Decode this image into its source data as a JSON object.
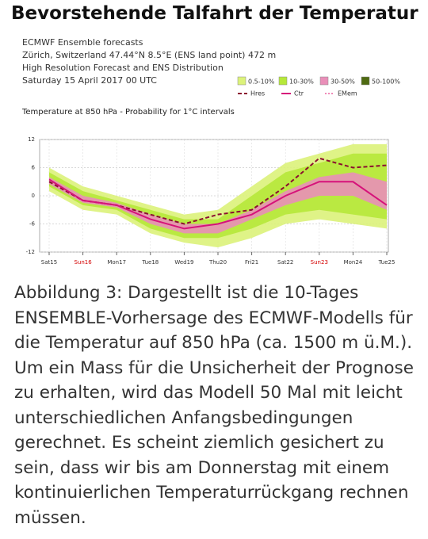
{
  "title": "Bevorstehende Talfahrt der Temperatur",
  "chart_data": {
    "type": "line",
    "header": [
      "ECMWF Ensemble forecasts",
      "Zürich, Switzerland 47.44°N 8.5°E (ENS land point) 472 m",
      "High Resolution Forecast and ENS Distribution",
      "Saturday 15 April 2017 00 UTC"
    ],
    "subtitle": "Temperature at 850 hPa - Probability for 1°C intervals",
    "categories": [
      "Sat15",
      "Sun16",
      "Mon17",
      "Tue18",
      "Wed19",
      "Thu20",
      "Fri21",
      "Sat22",
      "Sun23",
      "Mon24",
      "Tue25"
    ],
    "highlight": [
      1,
      8
    ],
    "highlight_color": "#d40000",
    "ylim": [
      -12,
      12
    ],
    "yticks": [
      -12,
      -6,
      0,
      6,
      12
    ],
    "grid": true,
    "bands": [
      {
        "name": "0.5-10%",
        "color": "#dcf27a",
        "lower": [
          1,
          -3,
          -4,
          -8,
          -10,
          -11,
          -9,
          -6,
          -5,
          -6,
          -7
        ],
        "upper": [
          6,
          2,
          0,
          -2,
          -4,
          -3,
          2,
          7,
          9,
          11,
          11
        ]
      },
      {
        "name": "10-30%",
        "color": "#b6e83a",
        "lower": [
          2,
          -2,
          -3,
          -7,
          -9,
          -9,
          -7,
          -4,
          -3,
          -4,
          -5
        ],
        "upper": [
          5,
          1,
          -1,
          -3,
          -5,
          -5,
          0,
          5,
          7,
          9,
          9
        ]
      },
      {
        "name": "30-50%",
        "color": "#e98fb8",
        "lower": [
          2.5,
          -1.5,
          -2.5,
          -6,
          -8,
          -8,
          -5,
          -2,
          0,
          0,
          -3
        ],
        "upper": [
          4,
          0,
          -1.5,
          -4,
          -6,
          -6,
          -3,
          1,
          4,
          5,
          3
        ]
      },
      {
        "name": "50-100%",
        "color": "#4f6a12"
      }
    ],
    "series": [
      {
        "name": "Hres",
        "color": "#8b1030",
        "dash": "5,3",
        "values": [
          3,
          -1,
          -2,
          -4,
          -6,
          -4,
          -3,
          2,
          8,
          6,
          6.5
        ]
      },
      {
        "name": "Ctr",
        "color": "#d6127a",
        "values": [
          3.5,
          -1,
          -2,
          -5,
          -7,
          -6,
          -4,
          0,
          3,
          3,
          -2
        ]
      },
      {
        "name": "EMem",
        "color": "#f08ab8",
        "dash": "2,2"
      }
    ]
  },
  "caption": "Abbildung 3: Dargestellt ist die 10-Tages ENSEMBLE-Vorhersage des ECMWF-Modells für die Temperatur auf 850 hPa (ca. 1500 m ü.M.). Um ein Mass für die Unsicherheit der Prognose zu erhalten, wird das Modell 50 Mal mit leicht unterschiedlichen Anfangsbedingungen gerechnet. Es scheint ziemlich gesichert zu sein, dass wir bis am Donnerstag mit einem kontinuierlichen Temperaturrückgang rechnen müssen."
}
